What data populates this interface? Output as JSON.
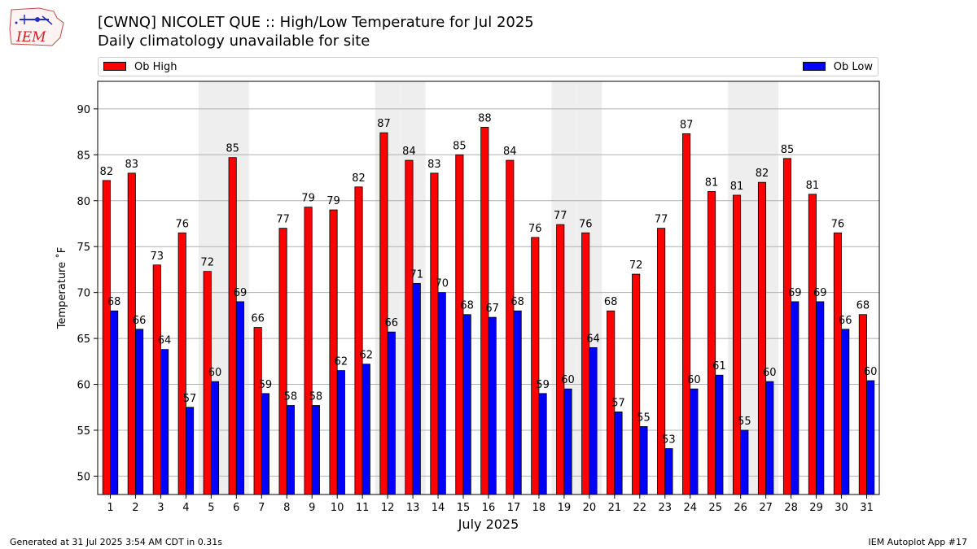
{
  "header": {
    "title_line1": "[CWNQ] NICOLET  QUE :: High/Low Temperature for Jul 2025",
    "title_line2": "Daily climatology unavailable for site",
    "logo_text": "IEM"
  },
  "legend": {
    "high_label": "Ob High",
    "low_label": "Ob Low",
    "placement": "top, spanning full width"
  },
  "footer": {
    "left": "Generated at 31 Jul 2025 3:54 AM CDT in 0.31s",
    "right": "IEM Autoplot App #17"
  },
  "colors": {
    "high": "#ff0000",
    "low": "#0000ff",
    "weekend_shade": "#eeeeee",
    "grid": "#b0b0b0"
  },
  "chart_data": {
    "type": "bar",
    "title": "[CWNQ] NICOLET  QUE :: High/Low Temperature for Jul 2025",
    "subtitle": "Daily climatology unavailable for site",
    "xlabel": "July 2025",
    "ylabel": "Temperature ˚F",
    "ylim": [
      48,
      93
    ],
    "yticks": [
      50,
      55,
      60,
      65,
      70,
      75,
      80,
      85,
      90
    ],
    "grid": true,
    "categories": [
      "1",
      "2",
      "3",
      "4",
      "5",
      "6",
      "7",
      "8",
      "9",
      "10",
      "11",
      "12",
      "13",
      "14",
      "15",
      "16",
      "17",
      "18",
      "19",
      "20",
      "21",
      "22",
      "23",
      "24",
      "25",
      "26",
      "27",
      "28",
      "29",
      "30",
      "31"
    ],
    "shaded_days": [
      5,
      6,
      12,
      13,
      19,
      20,
      26,
      27
    ],
    "series": [
      {
        "name": "Ob High",
        "values": [
          82.2,
          83,
          73,
          76.5,
          72.3,
          84.7,
          66.2,
          77,
          79.3,
          79,
          81.5,
          87.4,
          84.4,
          83,
          85,
          88,
          84.4,
          76,
          77.4,
          76.5,
          68,
          72,
          77,
          87.3,
          81,
          80.6,
          82,
          84.6,
          80.7,
          76.5,
          67.6
        ],
        "labels": [
          "82",
          "83",
          "73",
          "76",
          "72",
          "85",
          "66",
          "77",
          "79",
          "79",
          "82",
          "87",
          "84",
          "83",
          "85",
          "88",
          "84",
          "76",
          "77",
          "76",
          "68",
          "72",
          "77",
          "87",
          "81",
          "81",
          "82",
          "85",
          "81",
          "76",
          "68"
        ]
      },
      {
        "name": "Ob Low",
        "values": [
          68,
          66,
          63.8,
          57.5,
          60.3,
          69,
          59,
          57.7,
          57.7,
          61.5,
          62.2,
          65.7,
          71,
          70,
          67.6,
          67.3,
          68,
          59,
          59.5,
          64,
          57,
          55.4,
          53,
          59.5,
          61,
          55,
          60.3,
          69,
          69,
          66,
          60.4
        ],
        "labels": [
          "68",
          "66",
          "64",
          "57",
          "60",
          "69",
          "59",
          "58",
          "58",
          "62",
          "62",
          "66",
          "71",
          "70",
          "68",
          "67",
          "68",
          "59",
          "60",
          "64",
          "57",
          "55",
          "53",
          "60",
          "61",
          "55",
          "60",
          "69",
          "69",
          "66",
          "60"
        ]
      }
    ]
  }
}
